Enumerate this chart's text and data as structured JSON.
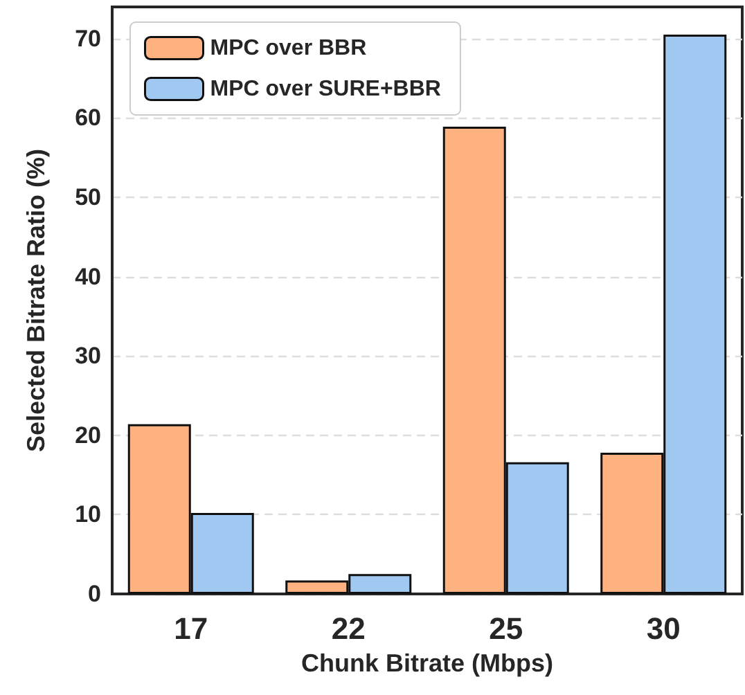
{
  "chart_data": {
    "type": "bar",
    "xlabel": "Chunk Bitrate (Mbps)",
    "ylabel": "Selected Bitrate Ratio (%)",
    "categories": [
      "17",
      "22",
      "25",
      "30"
    ],
    "series": [
      {
        "name": "MPC over BBR",
        "color": "#ffb27f",
        "values": [
          21.4,
          1.7,
          58.9,
          17.8
        ]
      },
      {
        "name": "MPC over SURE+BBR",
        "color": "#a1c8f0",
        "values": [
          10.2,
          2.5,
          16.6,
          70.5
        ]
      }
    ],
    "ylim": [
      0,
      74
    ],
    "yticks": [
      0,
      10,
      20,
      30,
      40,
      50,
      60,
      70
    ],
    "grid": "y",
    "legend": "top left"
  }
}
